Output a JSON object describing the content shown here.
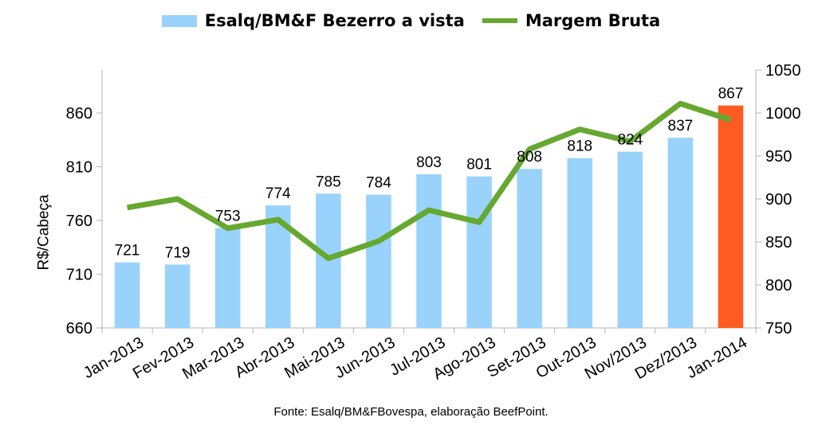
{
  "chart_data": {
    "type": "bar",
    "categories": [
      "Jan-2013",
      "Fev-2013",
      "Mar-2013",
      "Abr-2013",
      "Mai-2013",
      "Jun-2013",
      "Jul-2013",
      "Ago-2013",
      "Set-2013",
      "Out-2013",
      "Nov/2013",
      "Dez/2013",
      "Jan-2014"
    ],
    "series": [
      {
        "name": "Esalq/BM&F Bezerro a vista",
        "type": "bar",
        "axis": "left",
        "values": [
          721,
          719,
          753,
          774,
          785,
          784,
          803,
          801,
          808,
          818,
          824,
          837,
          867
        ],
        "color": "#99d3fb",
        "highlight_color": "#ff5a22",
        "highlight_index": 12
      },
      {
        "name": "Margem Bruta",
        "type": "line",
        "axis": "right",
        "values": [
          890,
          900,
          866,
          876,
          831,
          851,
          887,
          873,
          958,
          981,
          967,
          1011,
          992
        ],
        "color": "#66a830"
      }
    ],
    "ylabel": "R$/Cabeça",
    "xlabel": "",
    "ylim": [
      660,
      900
    ],
    "yticks": [
      660,
      710,
      760,
      810,
      860
    ],
    "y2lim": [
      750,
      1050
    ],
    "y2ticks": [
      750,
      800,
      850,
      900,
      950,
      1000,
      1050
    ],
    "legend_position": "top",
    "grid": false,
    "source": "Fonte: Esalq/BM&FBovespa, elaboração BeefPoint."
  }
}
